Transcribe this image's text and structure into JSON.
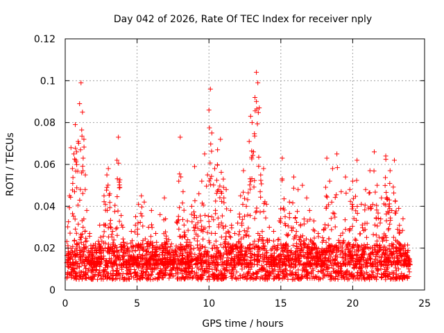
{
  "chart_data": {
    "type": "scatter",
    "title": "Day 042 of 2026, Rate Of TEC Index for receiver nply",
    "xlabel": "GPS time / hours",
    "ylabel": "ROTI / TECUs",
    "xlim": [
      0,
      25
    ],
    "ylim": [
      0,
      0.12
    ],
    "xticks": [
      0,
      5,
      10,
      15,
      20,
      25
    ],
    "xtick_labels": [
      "0",
      "5",
      "10",
      "15",
      "20",
      "25"
    ],
    "yticks": [
      0,
      0.02,
      0.04,
      0.06,
      0.08,
      0.1,
      0.12
    ],
    "ytick_labels": [
      "0",
      "0.02",
      "0.04",
      "0.06",
      "0.08",
      "0.1",
      "0.12"
    ],
    "grid": true,
    "marker": "+",
    "marker_color": "#ff0000",
    "series": [
      {
        "name": "ROTI",
        "x": [
          0.1,
          0.2,
          0.3,
          0.4,
          0.5,
          0.6,
          0.7,
          0.8,
          0.9,
          1.0,
          1.1,
          1.2,
          1.25,
          1.3,
          1.4,
          1.5,
          1.7,
          1.9,
          2.1,
          2.4,
          2.7,
          2.9,
          3.0,
          3.1,
          3.3,
          3.6,
          3.7,
          3.8,
          4.0,
          4.3,
          4.6,
          4.9,
          5.1,
          5.3,
          5.5,
          5.8,
          6.0,
          6.3,
          6.6,
          6.9,
          7.2,
          7.5,
          7.8,
          7.9,
          8.0,
          8.2,
          8.5,
          8.8,
          9.0,
          9.3,
          9.5,
          9.7,
          9.9,
          10.0,
          10.1,
          10.2,
          10.4,
          10.6,
          10.8,
          11.0,
          11.2,
          11.5,
          11.8,
          12.0,
          12.2,
          12.4,
          12.6,
          12.8,
          12.9,
          13.0,
          13.1,
          13.2,
          13.3,
          13.4,
          13.5,
          13.6,
          13.8,
          14.0,
          14.2,
          14.5,
          14.8,
          15.1,
          15.3,
          15.6,
          15.9,
          16.2,
          16.5,
          16.8,
          17.0,
          17.3,
          17.6,
          17.9,
          18.2,
          18.4,
          18.6,
          18.9,
          19.2,
          19.5,
          19.8,
          20.0,
          20.3,
          20.6,
          20.9,
          21.2,
          21.5,
          21.7,
          22.0,
          22.3,
          22.6,
          22.9,
          23.2,
          23.5,
          23.8,
          24.0
        ],
        "y": [
          0.013,
          0.02,
          0.045,
          0.068,
          0.058,
          0.065,
          0.079,
          0.066,
          0.071,
          0.089,
          0.099,
          0.085,
          0.063,
          0.072,
          0.055,
          0.038,
          0.027,
          0.018,
          0.022,
          0.031,
          0.045,
          0.055,
          0.058,
          0.046,
          0.028,
          0.062,
          0.073,
          0.049,
          0.03,
          0.022,
          0.028,
          0.035,
          0.041,
          0.045,
          0.042,
          0.03,
          0.038,
          0.027,
          0.036,
          0.044,
          0.024,
          0.018,
          0.032,
          0.052,
          0.073,
          0.047,
          0.033,
          0.04,
          0.059,
          0.046,
          0.052,
          0.065,
          0.055,
          0.086,
          0.096,
          0.075,
          0.058,
          0.067,
          0.072,
          0.053,
          0.048,
          0.038,
          0.027,
          0.032,
          0.045,
          0.057,
          0.04,
          0.071,
          0.083,
          0.08,
          0.066,
          0.092,
          0.104,
          0.099,
          0.087,
          0.055,
          0.058,
          0.041,
          0.03,
          0.028,
          0.024,
          0.063,
          0.035,
          0.042,
          0.054,
          0.048,
          0.05,
          0.044,
          0.038,
          0.033,
          0.027,
          0.025,
          0.063,
          0.052,
          0.058,
          0.065,
          0.047,
          0.054,
          0.048,
          0.052,
          0.062,
          0.041,
          0.048,
          0.057,
          0.066,
          0.05,
          0.044,
          0.064,
          0.057,
          0.062,
          0.039,
          0.034,
          0.018,
          0.012
        ]
      }
    ],
    "background_band": {
      "x_start": 0.1,
      "x_end": 24.0,
      "y_low": 0.005,
      "y_high": 0.022,
      "note": "dense baseline of ROTI samples across the full day"
    }
  }
}
